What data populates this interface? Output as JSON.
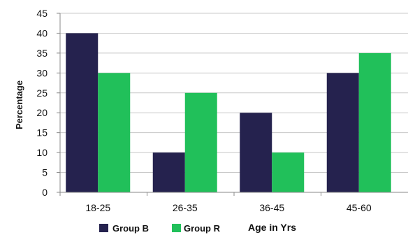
{
  "chart_data": {
    "type": "bar",
    "categories": [
      "18-25",
      "26-35",
      "36-45",
      "45-60"
    ],
    "series": [
      {
        "name": "Group B",
        "values": [
          40,
          10,
          20,
          30
        ]
      },
      {
        "name": "Group R",
        "values": [
          30,
          25,
          10,
          35
        ]
      }
    ],
    "title": "",
    "xlabel": "Age in Yrs",
    "ylabel": "Percentage",
    "ylim": [
      0,
      45
    ],
    "yticks": [
      0,
      5,
      10,
      15,
      20,
      25,
      30,
      35,
      40,
      45
    ],
    "grid": true,
    "legend_position": "bottom-left",
    "colors": {
      "Group B": "#25224e",
      "Group R": "#21c05a",
      "grid": "#c8c8c8",
      "axis": "#888888"
    }
  }
}
